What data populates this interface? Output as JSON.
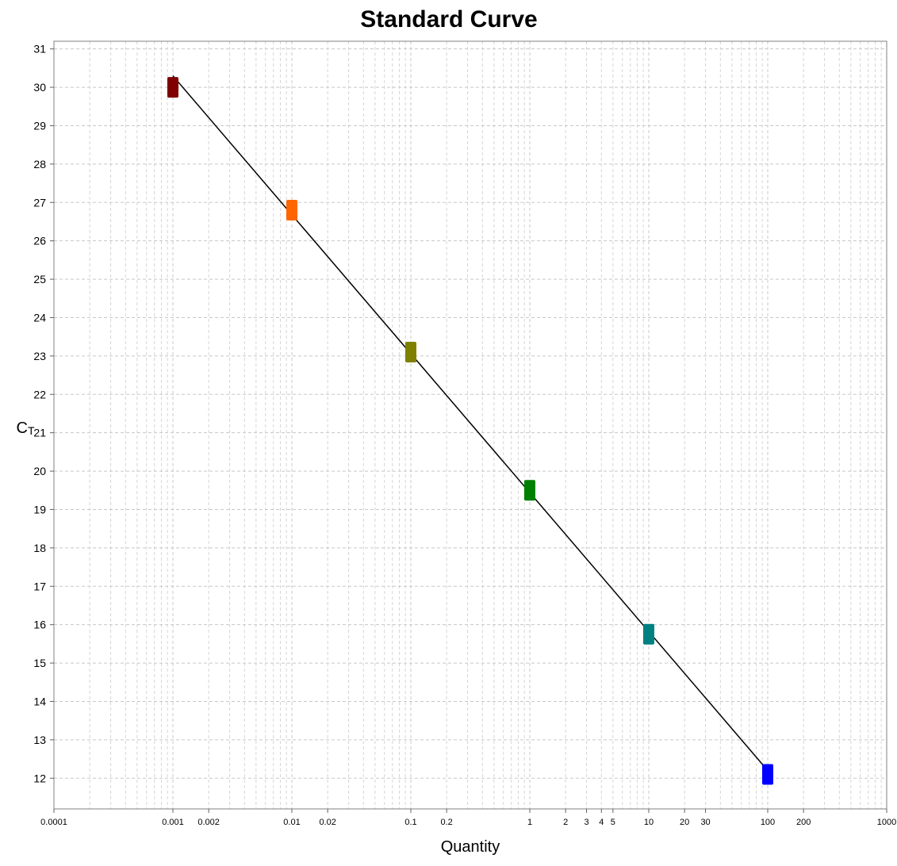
{
  "chart_data": {
    "type": "scatter",
    "title": "Standard Curve",
    "xlabel": "Quantity",
    "ylabel": "C",
    "ylabel_subscript": "T",
    "x_scale": "log",
    "xlim": [
      0.0001,
      1000
    ],
    "ylim": [
      11.2,
      31.2
    ],
    "grid": true,
    "x_tick_labels": [
      {
        "value": 0.0001,
        "label": "0.0001"
      },
      {
        "value": 0.001,
        "label": "0.001"
      },
      {
        "value": 0.002,
        "label": "0.002"
      },
      {
        "value": 0.01,
        "label": "0.01"
      },
      {
        "value": 0.02,
        "label": "0.02"
      },
      {
        "value": 0.1,
        "label": "0.1"
      },
      {
        "value": 0.2,
        "label": "0.2"
      },
      {
        "value": 1,
        "label": "1"
      },
      {
        "value": 2,
        "label": "2"
      },
      {
        "value": 3,
        "label": "3"
      },
      {
        "value": 4,
        "label": "4"
      },
      {
        "value": 5,
        "label": "5"
      },
      {
        "value": 10,
        "label": "10"
      },
      {
        "value": 20,
        "label": "20"
      },
      {
        "value": 30,
        "label": "30"
      },
      {
        "value": 100,
        "label": "100"
      },
      {
        "value": 200,
        "label": "200"
      },
      {
        "value": 1000,
        "label": "1000"
      }
    ],
    "y_ticks": [
      12,
      13,
      14,
      15,
      16,
      17,
      18,
      19,
      20,
      21,
      22,
      23,
      24,
      25,
      26,
      27,
      28,
      29,
      30,
      31
    ],
    "points": [
      {
        "x": 0.001,
        "y": 30.0,
        "color": "#800000"
      },
      {
        "x": 0.01,
        "y": 26.8,
        "color": "#ff6600"
      },
      {
        "x": 0.1,
        "y": 23.1,
        "color": "#808000"
      },
      {
        "x": 1,
        "y": 19.5,
        "color": "#008000"
      },
      {
        "x": 10,
        "y": 15.75,
        "color": "#008080"
      },
      {
        "x": 100,
        "y": 12.1,
        "color": "#0000ff"
      }
    ],
    "fit_line": {
      "from": {
        "x": 0.001,
        "y": 30.3
      },
      "to": {
        "x": 100,
        "y": 12.2
      },
      "color": "#000000"
    }
  }
}
